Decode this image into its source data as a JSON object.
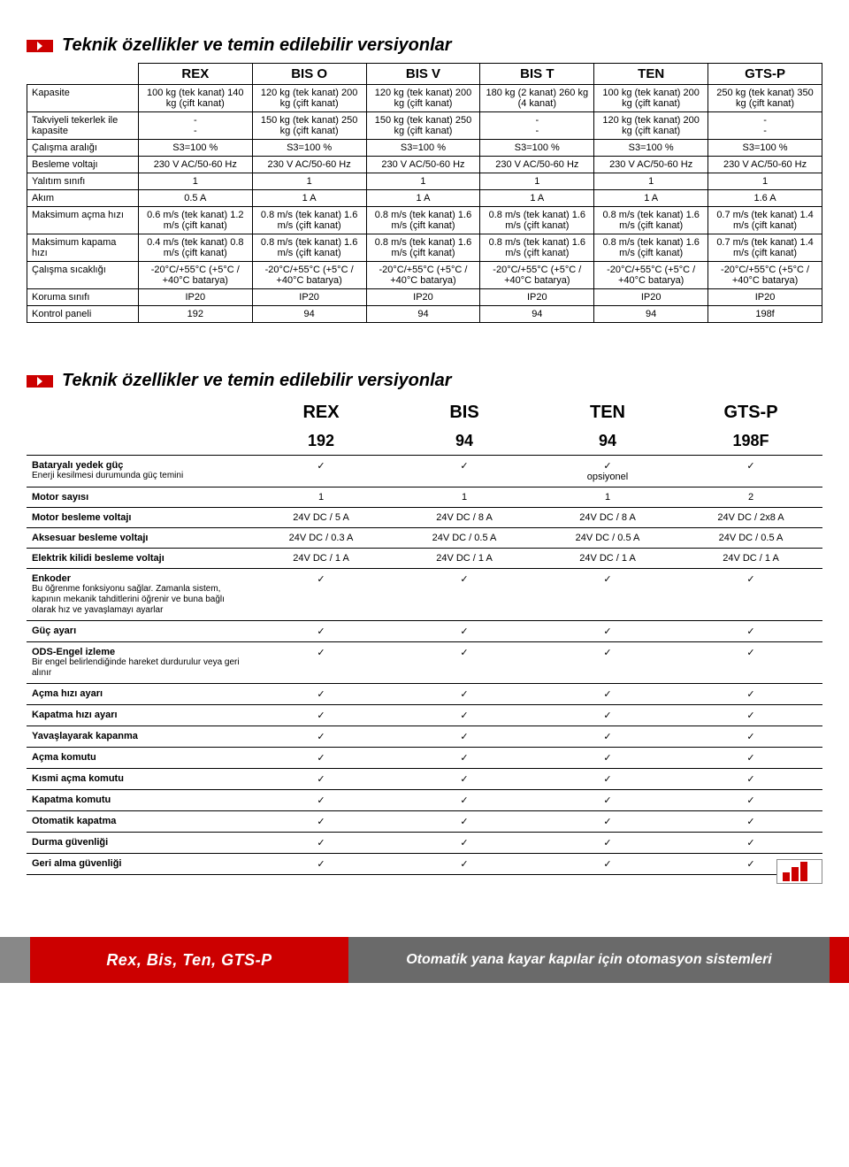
{
  "section1": {
    "title": "Teknik özellikler ve temin edilebilir versiyonlar",
    "columns": [
      "REX",
      "BIS O",
      "BIS V",
      "BIS T",
      "TEN",
      "GTS-P"
    ],
    "rows": [
      {
        "label": "Kapasite",
        "cells": [
          "100 kg (tek kanat) 140 kg (çift kanat)",
          "120 kg (tek kanat) 200 kg (çift kanat)",
          "120 kg (tek kanat) 200 kg (çift kanat)",
          "180 kg (2 kanat) 260 kg (4 kanat)",
          "100 kg (tek kanat) 200 kg (çift kanat)",
          "250 kg (tek kanat) 350 kg (çift kanat)"
        ]
      },
      {
        "label": "Takviyeli tekerlek ile kapasite",
        "cells": [
          "-\n-",
          "150 kg (tek kanat) 250 kg (çift kanat)",
          "150 kg (tek kanat) 250 kg (çift kanat)",
          "-\n-",
          "120 kg (tek kanat) 200 kg (çift kanat)",
          "-\n-"
        ]
      },
      {
        "label": "Çalışma aralığı",
        "cells": [
          "S3=100 %",
          "S3=100 %",
          "S3=100 %",
          "S3=100 %",
          "S3=100 %",
          "S3=100 %"
        ]
      },
      {
        "label": "Besleme voltajı",
        "cells": [
          "230 V AC/50-60 Hz",
          "230 V AC/50-60 Hz",
          "230 V AC/50-60 Hz",
          "230 V AC/50-60 Hz",
          "230 V AC/50-60 Hz",
          "230 V AC/50-60 Hz"
        ]
      },
      {
        "label": "Yalıtım sınıfı",
        "cells": [
          "1",
          "1",
          "1",
          "1",
          "1",
          "1"
        ]
      },
      {
        "label": "Akım",
        "cells": [
          "0.5 A",
          "1 A",
          "1 A",
          "1 A",
          "1 A",
          "1.6 A"
        ]
      },
      {
        "label": "Maksimum açma hızı",
        "cells": [
          "0.6 m/s (tek kanat) 1.2 m/s (çift kanat)",
          "0.8 m/s (tek kanat) 1.6 m/s (çift kanat)",
          "0.8 m/s (tek kanat) 1.6 m/s (çift kanat)",
          "0.8 m/s (tek kanat) 1.6 m/s (çift kanat)",
          "0.8 m/s (tek kanat) 1.6 m/s (çift kanat)",
          "0.7 m/s (tek kanat) 1.4 m/s (çift kanat)"
        ]
      },
      {
        "label": "Maksimum kapama hızı",
        "cells": [
          "0.4 m/s (tek kanat) 0.8 m/s (çift kanat)",
          "0.8 m/s (tek kanat) 1.6 m/s (çift kanat)",
          "0.8 m/s (tek kanat) 1.6 m/s (çift kanat)",
          "0.8 m/s (tek kanat) 1.6 m/s (çift kanat)",
          "0.8 m/s (tek kanat) 1.6 m/s (çift kanat)",
          "0.7 m/s (tek kanat) 1.4 m/s (çift kanat)"
        ]
      },
      {
        "label": "Çalışma sıcaklığı",
        "cells": [
          "-20°C/+55°C (+5°C / +40°C batarya)",
          "-20°C/+55°C (+5°C / +40°C batarya)",
          "-20°C/+55°C (+5°C / +40°C batarya)",
          "-20°C/+55°C (+5°C / +40°C batarya)",
          "-20°C/+55°C (+5°C / +40°C batarya)",
          "-20°C/+55°C (+5°C / +40°C batarya)"
        ]
      },
      {
        "label": "Koruma sınıfı",
        "cells": [
          "IP20",
          "IP20",
          "IP20",
          "IP20",
          "IP20",
          "IP20"
        ]
      },
      {
        "label": "Kontrol paneli",
        "cells": [
          "192",
          "94",
          "94",
          "94",
          "94",
          "198f"
        ]
      }
    ]
  },
  "section2": {
    "title": "Teknik özellikler ve temin edilebilir versiyonlar",
    "columns": {
      "models": [
        "REX",
        "BIS",
        "TEN",
        "GTS-P"
      ],
      "codes": [
        "192",
        "94",
        "94",
        "198F"
      ]
    },
    "check": "✓",
    "rows": [
      {
        "label": "Bataryalı yedek güç",
        "sub": "Enerji kesilmesi durumunda güç temini",
        "cells": [
          "✓",
          "✓",
          "✓\nopsiyonel",
          "✓"
        ]
      },
      {
        "label": "Motor sayısı",
        "sub": "",
        "cells": [
          "1",
          "1",
          "1",
          "2"
        ]
      },
      {
        "label": "Motor besleme voltajı",
        "sub": "",
        "cells": [
          "24V DC / 5 A",
          "24V DC / 8 A",
          "24V DC / 8 A",
          "24V DC / 2x8 A"
        ]
      },
      {
        "label": "Aksesuar besleme voltajı",
        "sub": "",
        "cells": [
          "24V DC / 0.3 A",
          "24V DC / 0.5 A",
          "24V DC / 0.5 A",
          "24V DC / 0.5 A"
        ]
      },
      {
        "label": "Elektrik kilidi besleme voltajı",
        "sub": "",
        "cells": [
          "24V DC / 1 A",
          "24V DC / 1 A",
          "24V DC / 1 A",
          "24V DC / 1 A"
        ]
      },
      {
        "label": "Enkoder",
        "sub": "Bu öğrenme fonksiyonu sağlar. Zamanla sistem, kapının mekanik tahditlerini öğrenir ve buna bağlı olarak hız ve yavaşlamayı ayarlar",
        "cells": [
          "✓",
          "✓",
          "✓",
          "✓"
        ]
      },
      {
        "label": "Güç ayarı",
        "sub": "",
        "cells": [
          "✓",
          "✓",
          "✓",
          "✓"
        ]
      },
      {
        "label": "ODS-Engel izleme",
        "sub": "Bir engel belirlendiğinde hareket durdurulur veya geri alınır",
        "cells": [
          "✓",
          "✓",
          "✓",
          "✓"
        ]
      },
      {
        "label": "Açma hızı ayarı",
        "sub": "",
        "cells": [
          "✓",
          "✓",
          "✓",
          "✓"
        ]
      },
      {
        "label": "Kapatma hızı ayarı",
        "sub": "",
        "cells": [
          "✓",
          "✓",
          "✓",
          "✓"
        ]
      },
      {
        "label": "Yavaşlayarak kapanma",
        "sub": "",
        "cells": [
          "✓",
          "✓",
          "✓",
          "✓"
        ]
      },
      {
        "label": "Açma komutu",
        "sub": "",
        "cells": [
          "✓",
          "✓",
          "✓",
          "✓"
        ]
      },
      {
        "label": "Kısmi açma komutu",
        "sub": "",
        "cells": [
          "✓",
          "✓",
          "✓",
          "✓"
        ]
      },
      {
        "label": "Kapatma komutu",
        "sub": "",
        "cells": [
          "✓",
          "✓",
          "✓",
          "✓"
        ]
      },
      {
        "label": "Otomatik kapatma",
        "sub": "",
        "cells": [
          "✓",
          "✓",
          "✓",
          "✓"
        ]
      },
      {
        "label": "Durma güvenliği",
        "sub": "",
        "cells": [
          "✓",
          "✓",
          "✓",
          "✓"
        ]
      },
      {
        "label": "Geri alma güvenliği",
        "sub": "",
        "cells": [
          "✓",
          "✓",
          "✓",
          "✓"
        ]
      }
    ]
  },
  "footer": {
    "models": "Rex, Bis, Ten, GTS-P",
    "tagline": "Otomatik yana kayar kapılar için otomasyon sistemleri"
  }
}
